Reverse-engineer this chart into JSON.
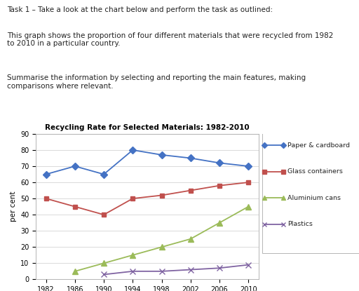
{
  "title": "Recycling Rate for Selected Materials: 1982-2010",
  "ylabel": "per cent",
  "years": [
    1982,
    1986,
    1990,
    1994,
    1998,
    2002,
    2006,
    2010
  ],
  "series": [
    {
      "label": "Paper & cardboard",
      "values": [
        65,
        70,
        65,
        80,
        77,
        75,
        72,
        70
      ],
      "color": "#4472C4",
      "marker": "D",
      "markersize": 5
    },
    {
      "label": "Glass containers",
      "values": [
        50,
        45,
        40,
        50,
        52,
        55,
        58,
        60
      ],
      "color": "#C0504D",
      "marker": "s",
      "markersize": 5
    },
    {
      "label": "Aluminium cans",
      "values": [
        null,
        5,
        10,
        15,
        20,
        25,
        35,
        45
      ],
      "color": "#9BBB59",
      "marker": "^",
      "markersize": 6
    },
    {
      "label": "Plastics",
      "values": [
        null,
        null,
        3,
        5,
        5,
        6,
        7,
        9
      ],
      "color": "#8064A2",
      "marker": "x",
      "markersize": 6
    }
  ],
  "ylim": [
    0,
    90
  ],
  "yticks": [
    0,
    10,
    20,
    30,
    40,
    50,
    60,
    70,
    80,
    90
  ],
  "xticks": [
    1982,
    1986,
    1990,
    1994,
    1998,
    2002,
    2006,
    2010
  ],
  "text_lines": [
    "Task 1 – Take a look at the chart below and perform the task as outlined:",
    "",
    "This graph shows the proportion of four different materials that were recycled from 1982\nto 2010 in a particular country.",
    "",
    "Summarise the information by selecting and reporting the main features, making\ncomparisons where relevant."
  ],
  "background_color": "#ffffff"
}
